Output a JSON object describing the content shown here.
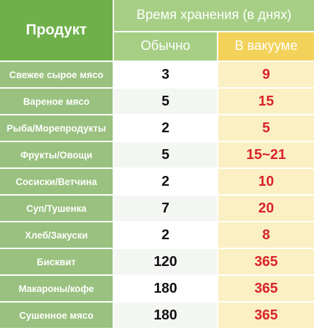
{
  "header": {
    "product": "Продукт",
    "storage_time": "Время хранения (в днях)",
    "normal": "Обычно",
    "vacuum": "В вакууме"
  },
  "rows": [
    {
      "name": "Свежее сырое мясо",
      "normal": "3",
      "vacuum": "9"
    },
    {
      "name": "Вареное мясо",
      "normal": "5",
      "vacuum": "15"
    },
    {
      "name": "Рыба/Морепродукты",
      "normal": "2",
      "vacuum": "5"
    },
    {
      "name": "Фрукты/Овощи",
      "normal": "5",
      "vacuum": "15~21"
    },
    {
      "name": "Сосиски/Ветчина",
      "normal": "2",
      "vacuum": "10"
    },
    {
      "name": "Суп/Тушенка",
      "normal": "7",
      "vacuum": "20"
    },
    {
      "name": "Хлеб/Закуски",
      "normal": "2",
      "vacuum": "8"
    },
    {
      "name": "Бисквит",
      "normal": "120",
      "vacuum": "365"
    },
    {
      "name": "Макароны/кофе",
      "normal": "180",
      "vacuum": "365"
    },
    {
      "name": "Сушенное мясо",
      "normal": "180",
      "vacuum": "365"
    }
  ]
}
